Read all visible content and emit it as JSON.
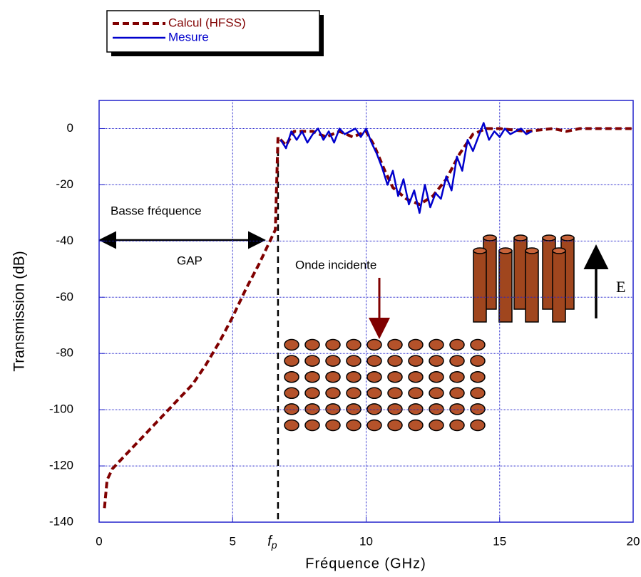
{
  "chart_data": {
    "type": "line",
    "xlabel": "Fréquence (GHz)",
    "ylabel": "Transmission (dB)",
    "xlim": [
      0,
      20
    ],
    "ylim": [
      -140,
      10
    ],
    "xticks": [
      0,
      5,
      10,
      15,
      20
    ],
    "yticks": [
      0,
      -20,
      -40,
      -60,
      -80,
      -100,
      -120,
      -140
    ],
    "grid": true,
    "legend": "top-left",
    "marker_line": {
      "x": 6.7,
      "label": "f",
      "subscript": "p"
    },
    "annotations": [
      "Basse fréquence",
      "GAP",
      "Onde incidente",
      "E"
    ],
    "series": [
      {
        "name": "Calcul (HFSS)",
        "color": "#800000",
        "style": "dashed",
        "x": [
          0.2,
          0.3,
          0.5,
          1,
          1.5,
          2,
          2.5,
          3,
          3.5,
          4,
          4.5,
          5,
          5.5,
          6,
          6.3,
          6.6,
          6.7,
          7,
          7.3,
          8,
          8.5,
          9,
          9.5,
          10,
          10.3,
          10.7,
          11,
          11.5,
          12,
          12.5,
          13,
          13.5,
          14,
          14.5,
          15,
          16,
          17,
          17.5,
          18,
          20
        ],
        "values": [
          -135,
          -125,
          -121,
          -116,
          -111,
          -106,
          -101,
          -96,
          -91,
          -84,
          -76,
          -67,
          -57,
          -48,
          -42,
          -36,
          -3,
          -6,
          -1,
          -1,
          -3,
          -1,
          -3,
          -1,
          -6,
          -15,
          -21,
          -25,
          -27,
          -24,
          -18,
          -9,
          -2,
          0,
          0,
          -1,
          0,
          -1,
          0,
          0
        ]
      },
      {
        "name": "Mesure",
        "color": "#0000cc",
        "style": "solid",
        "x": [
          6.8,
          7.0,
          7.2,
          7.4,
          7.6,
          7.8,
          8.0,
          8.2,
          8.4,
          8.6,
          8.8,
          9.0,
          9.2,
          9.4,
          9.6,
          9.8,
          10.0,
          10.2,
          10.4,
          10.6,
          10.8,
          11.0,
          11.2,
          11.4,
          11.6,
          11.8,
          12.0,
          12.2,
          12.4,
          12.6,
          12.8,
          13.0,
          13.2,
          13.4,
          13.6,
          13.8,
          14.0,
          14.2,
          14.4,
          14.6,
          14.8,
          15.0,
          15.2,
          15.4,
          15.6,
          15.8,
          16.0,
          16.2
        ],
        "values": [
          -4,
          -7,
          -1,
          -4,
          -1,
          -5,
          -2,
          0,
          -4,
          -1,
          -5,
          0,
          -2,
          -1,
          0,
          -3,
          0,
          -5,
          -9,
          -14,
          -20,
          -15,
          -24,
          -18,
          -27,
          -22,
          -30,
          -20,
          -28,
          -23,
          -25,
          -17,
          -22,
          -10,
          -15,
          -4,
          -8,
          -3,
          2,
          -4,
          -1,
          -3,
          0,
          -2,
          -1,
          0,
          -2,
          -1
        ]
      }
    ]
  }
}
